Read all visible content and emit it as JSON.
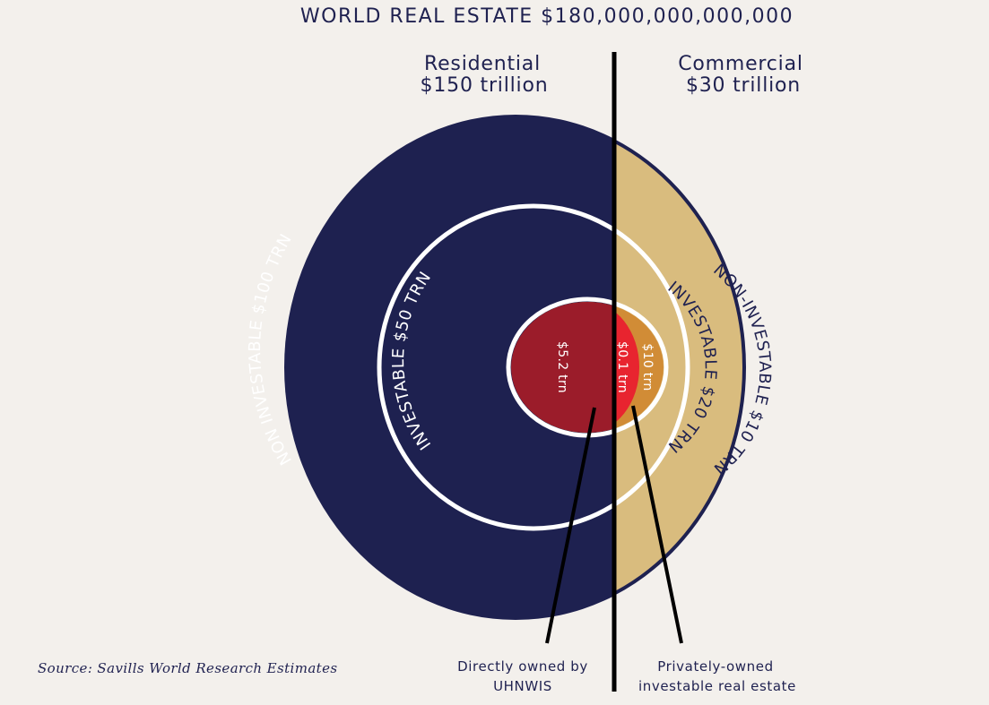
{
  "title": "WORLD REAL ESTATE $180,000,000,000,000",
  "residential": {
    "line1": "Residential",
    "line2": "$150 trillion"
  },
  "commercial": {
    "line1": "Commercial",
    "line2": "$30 trillion"
  },
  "rings": {
    "res_non_investable": "NON INVESTABLE $100 TRN",
    "res_investable": "INVESTABLE $50 TRN",
    "res_uhnwi": "$5.2 trn",
    "com_non_investable": "NON-INVESTABLE $10 TRN",
    "com_investable": "INVESTABLE $20 TRN",
    "com_private": "$10 trn",
    "com_uhnwi": "$0.1 trn"
  },
  "callouts": {
    "directly_owned_line1": "Directly owned by",
    "directly_owned_line2": "UHNWIS",
    "private_line1": "Privately-owned",
    "private_line2": "investable real estate"
  },
  "source": "Source: Savills World Research Estimates",
  "colors": {
    "navy": "#1e2150",
    "tan": "#d9bc7e",
    "maroon": "#9b1c2a",
    "red": "#e8242f",
    "orange": "#d18c36",
    "background": "#f3f0ec"
  }
}
